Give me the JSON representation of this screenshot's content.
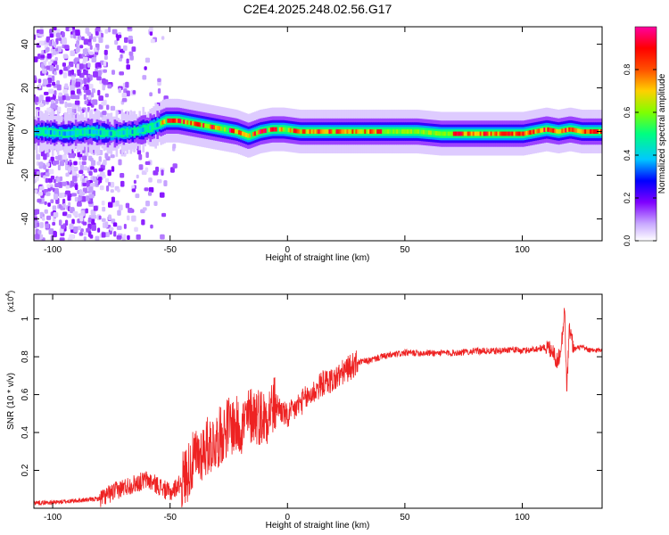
{
  "figure_title": "C2E4.2025.248.02.56.G17",
  "chart_data": [
    {
      "type": "heatmap",
      "title": "",
      "xlabel": "Height of straight line (km)",
      "ylabel": "Frequency (Hz)",
      "xlim": [
        -108,
        134
      ],
      "ylim": [
        -50,
        48
      ],
      "xticks": [
        -100,
        -50,
        0,
        50,
        100
      ],
      "yticks": [
        -40,
        -20,
        0,
        20,
        40
      ],
      "colorbar": {
        "label": "Normalized spectral amplitude",
        "range": [
          0.0,
          1.0
        ],
        "ticks": [
          0.0,
          0.2,
          0.4,
          0.6,
          0.8
        ],
        "colors": [
          "#ffffff",
          "#c8a8ff",
          "#7f00ff",
          "#0000ff",
          "#00c8ff",
          "#00ff80",
          "#80ff00",
          "#ffd000",
          "#ff5000",
          "#ff0000",
          "#ff00a0"
        ]
      },
      "ridge": {
        "x": [
          -105,
          -95,
          -85,
          -75,
          -65,
          -58,
          -52,
          -47,
          -42,
          -37,
          -32,
          -27,
          -22,
          -17,
          -12,
          -7,
          -2,
          5,
          15,
          25,
          35,
          45,
          55,
          65,
          75,
          85,
          95,
          100,
          105,
          110,
          115,
          120,
          125,
          134
        ],
        "freq": [
          0,
          -1,
          0,
          -1,
          0,
          2,
          5,
          5,
          4,
          3,
          2,
          1,
          0,
          -2,
          0,
          1,
          1,
          0,
          0,
          0,
          0,
          0,
          0,
          -1,
          -1,
          -1,
          -1,
          -1,
          0,
          1,
          0,
          1,
          0,
          0
        ]
      },
      "noisy_region_x": [
        -108,
        -45
      ]
    },
    {
      "type": "line",
      "title": "",
      "xlabel": "Height of straight line (km)",
      "ylabel": "SNR (10 * v/v)",
      "y_multiplier": "(x10",
      "y_multiplier_exp": "4",
      "xlim": [
        -108,
        134
      ],
      "ylim": [
        0,
        1.13
      ],
      "xticks": [
        -100,
        -50,
        0,
        50,
        100
      ],
      "yticks": [
        0.2,
        0.4,
        0.6,
        0.8,
        1.0
      ],
      "color": "#ee2222",
      "series": [
        {
          "x": [
            -108,
            -100,
            -90,
            -80,
            -75,
            -70,
            -65,
            -60,
            -55,
            -50,
            -45,
            -40,
            -35,
            -30,
            -25,
            -20,
            -15,
            -10,
            -5,
            0,
            5,
            10,
            15,
            20,
            25,
            30,
            35,
            40,
            50,
            60,
            70,
            80,
            85,
            90,
            95,
            100,
            105,
            110,
            113,
            115,
            117,
            118,
            119,
            120,
            122,
            125,
            130,
            134
          ],
          "values": [
            0.03,
            0.03,
            0.04,
            0.05,
            0.08,
            0.11,
            0.13,
            0.15,
            0.12,
            0.08,
            0.14,
            0.25,
            0.32,
            0.36,
            0.44,
            0.43,
            0.5,
            0.48,
            0.55,
            0.48,
            0.55,
            0.6,
            0.66,
            0.68,
            0.73,
            0.77,
            0.78,
            0.8,
            0.82,
            0.82,
            0.82,
            0.83,
            0.83,
            0.83,
            0.84,
            0.83,
            0.84,
            0.85,
            0.84,
            0.76,
            0.9,
            1.06,
            0.62,
            0.95,
            0.84,
            0.85,
            0.83,
            0.84
          ]
        }
      ]
    }
  ]
}
